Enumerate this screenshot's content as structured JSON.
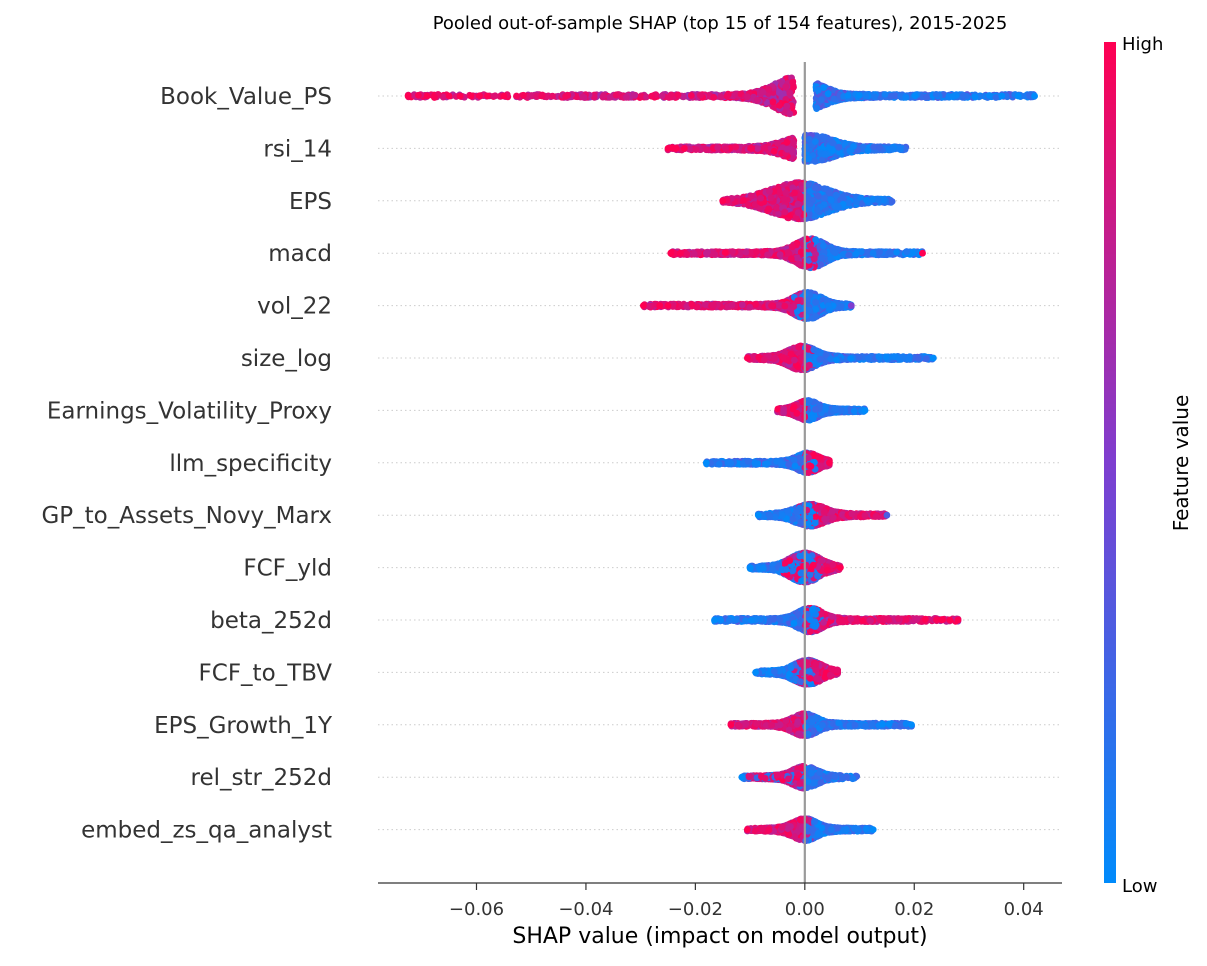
{
  "chart_data": {
    "type": "scatter",
    "subtype": "shap-beeswarm",
    "title": "Pooled out-of-sample SHAP (top 15 of 154 features), 2015-2025",
    "xlabel": "SHAP value (impact on model output)",
    "ylabel": "",
    "xlim": [
      -0.078,
      0.047
    ],
    "x_ticks": [
      -0.06,
      -0.04,
      -0.02,
      0.0,
      0.02,
      0.04
    ],
    "x_tick_labels": [
      "−0.06",
      "−0.04",
      "−0.02",
      "0.00",
      "0.02",
      "0.04"
    ],
    "grid": false,
    "row_guides": "dotted",
    "zero_line": 0.0,
    "colorbar": {
      "label": "Feature value",
      "high_label": "High",
      "low_label": "Low",
      "high_color": "#ff0052",
      "mid_color": "#7e3ed0",
      "low_color": "#008bfb"
    },
    "features": [
      {
        "name": "Book_Value_PS",
        "min": -0.0725,
        "max": 0.042,
        "high_min": -0.0725,
        "high_max": -0.002,
        "low_min": 0.002,
        "low_max": 0.042,
        "lh": -0.018,
        "ll": 0.015,
        "core_low": -0.008,
        "core_high": 0.005,
        "peak_w": 0.75,
        "outliers": [
          [
            -0.0725,
            1
          ],
          [
            -0.069,
            1
          ],
          [
            -0.065,
            1
          ],
          [
            -0.063,
            1
          ],
          [
            -0.061,
            1
          ],
          [
            -0.058,
            1
          ],
          [
            -0.055,
            1
          ],
          [
            0.036,
            0
          ],
          [
            0.039,
            0
          ],
          [
            0.042,
            0
          ]
        ]
      },
      {
        "name": "rsi_14",
        "min": -0.025,
        "max": 0.0185,
        "high_min": -0.025,
        "high_max": -0.002,
        "low_min": 0.0,
        "low_max": 0.0185,
        "lh": -0.007,
        "ll": 0.007,
        "core_low": -0.006,
        "core_high": 0.008,
        "peak_w": 0.5,
        "outliers": [
          [
            -0.025,
            1
          ],
          [
            -0.0235,
            1
          ],
          [
            -0.022,
            1
          ]
        ]
      },
      {
        "name": "EPS",
        "min": -0.015,
        "max": 0.016,
        "high_min": -0.015,
        "high_max": 0.0,
        "low_min": 0.0,
        "low_max": 0.016,
        "lh": -0.005,
        "ll": 0.006,
        "core_low": -0.01,
        "core_high": 0.008,
        "peak_w": 0.7,
        "outliers": [
          [
            -0.015,
            1
          ]
        ]
      },
      {
        "name": "macd",
        "min": -0.0245,
        "max": 0.0215,
        "high_min": -0.0245,
        "high_max": 0.002,
        "low_min": 0.0,
        "low_max": 0.0215,
        "lh": -0.007,
        "ll": 0.006,
        "core_low": -0.003,
        "core_high": 0.005,
        "peak_w": 0.55,
        "outliers": [
          [
            -0.0245,
            1
          ],
          [
            0.0215,
            1
          ]
        ]
      },
      {
        "name": "vol_22",
        "min": -0.0295,
        "max": 0.0085,
        "high_min": -0.0295,
        "high_max": 0.0,
        "low_min": -0.002,
        "low_max": 0.0085,
        "lh": -0.008,
        "ll": 0.003,
        "core_low": -0.003,
        "core_high": 0.004,
        "peak_w": 0.5,
        "outliers": [
          [
            -0.0295,
            1
          ],
          [
            -0.0265,
            1
          ],
          [
            -0.025,
            1
          ],
          [
            0.0085,
            0.5
          ]
        ]
      },
      {
        "name": "size_log",
        "min": -0.0105,
        "max": 0.0235,
        "high_min": -0.0105,
        "high_max": 0.002,
        "low_min": 0.0,
        "low_max": 0.0235,
        "lh": -0.004,
        "ll": 0.008,
        "core_low": -0.004,
        "core_high": 0.003,
        "peak_w": 0.45,
        "outliers": [
          [
            -0.0105,
            1
          ],
          [
            0.0235,
            0
          ]
        ]
      },
      {
        "name": "Earnings_Volatility_Proxy",
        "min": -0.005,
        "max": 0.011,
        "high_min": -0.005,
        "high_max": 0.0,
        "low_min": 0.0,
        "low_max": 0.011,
        "lh": -0.002,
        "ll": 0.004,
        "core_low": -0.002,
        "core_high": 0.003,
        "peak_w": 0.35,
        "outliers": [
          [
            0.011,
            0
          ]
        ]
      },
      {
        "name": "llm_specificity",
        "min": -0.018,
        "max": 0.0045,
        "high_min": 0.0,
        "high_max": 0.0045,
        "low_min": -0.018,
        "low_max": 0.002,
        "lh": 0.002,
        "ll": -0.006,
        "core_low": -0.002,
        "core_high": 0.003,
        "peak_w": 0.35,
        "outliers": [
          [
            -0.018,
            0
          ],
          [
            0.0045,
            1
          ]
        ]
      },
      {
        "name": "GP_to_Assets_Novy_Marx",
        "min": -0.0085,
        "max": 0.015,
        "high_min": -0.001,
        "high_max": 0.015,
        "low_min": -0.0085,
        "low_max": 0.002,
        "lh": 0.004,
        "ll": -0.002,
        "core_low": -0.003,
        "core_high": 0.005,
        "peak_w": 0.4,
        "outliers": [
          [
            -0.0085,
            0
          ],
          [
            0.015,
            0.3
          ]
        ]
      },
      {
        "name": "FCF_yld",
        "min": -0.01,
        "max": 0.0065,
        "high_min": -0.004,
        "high_max": 0.0065,
        "low_min": -0.01,
        "low_max": 0.003,
        "lh": 0.002,
        "ll": -0.004,
        "core_low": -0.004,
        "core_high": 0.004,
        "peak_w": 0.55,
        "outliers": [
          [
            -0.01,
            0
          ],
          [
            0.0065,
            1
          ]
        ]
      },
      {
        "name": "beta_252d",
        "min": -0.0165,
        "max": 0.028,
        "high_min": 0.0,
        "high_max": 0.028,
        "low_min": -0.0165,
        "low_max": 0.003,
        "lh": 0.008,
        "ll": -0.005,
        "core_low": -0.002,
        "core_high": 0.004,
        "peak_w": 0.45,
        "outliers": [
          [
            -0.0165,
            0
          ],
          [
            0.025,
            1
          ],
          [
            0.0265,
            1
          ],
          [
            0.028,
            1
          ]
        ]
      },
      {
        "name": "FCF_to_TBV",
        "min": -0.009,
        "max": 0.006,
        "high_min": -0.002,
        "high_max": 0.006,
        "low_min": -0.009,
        "low_max": 0.002,
        "lh": 0.002,
        "ll": -0.003,
        "core_low": -0.003,
        "core_high": 0.004,
        "peak_w": 0.45,
        "outliers": [
          [
            -0.009,
            0
          ]
        ]
      },
      {
        "name": "EPS_Growth_1Y",
        "min": -0.0135,
        "max": 0.0195,
        "high_min": -0.0135,
        "high_max": 0.0,
        "low_min": 0.0,
        "low_max": 0.0195,
        "lh": -0.004,
        "ll": 0.004,
        "core_low": -0.003,
        "core_high": 0.003,
        "peak_w": 0.4,
        "outliers": [
          [
            -0.0135,
            1
          ],
          [
            0.0195,
            0
          ]
        ]
      },
      {
        "name": "rel_str_252d",
        "min": -0.0115,
        "max": 0.0095,
        "high_min": -0.0105,
        "high_max": 0.0,
        "low_min": -0.0115,
        "low_max": 0.0095,
        "lh": -0.003,
        "ll": 0.003,
        "core_low": -0.003,
        "core_high": 0.003,
        "peak_w": 0.4,
        "outliers": [
          [
            -0.0115,
            0
          ]
        ]
      },
      {
        "name": "embed_zs_qa_analyst",
        "min": -0.0105,
        "max": 0.0125,
        "high_min": -0.0105,
        "high_max": 0.001,
        "low_min": 0.0,
        "low_max": 0.0125,
        "lh": -0.003,
        "ll": 0.004,
        "core_low": -0.003,
        "core_high": 0.003,
        "peak_w": 0.4,
        "outliers": [
          [
            -0.0105,
            1
          ],
          [
            0.0125,
            0
          ]
        ]
      }
    ]
  }
}
